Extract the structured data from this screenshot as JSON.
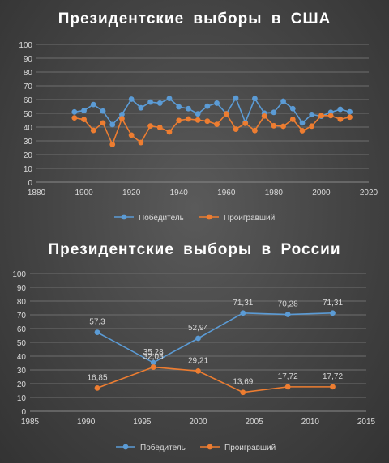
{
  "chart_data": [
    {
      "type": "line",
      "title": "Президентские выборы в США",
      "xlim": [
        1880,
        2020
      ],
      "ylim": [
        0,
        100
      ],
      "xticks": [
        "1880",
        "1900",
        "1920",
        "1940",
        "1960",
        "1980",
        "2000",
        "2020"
      ],
      "yticks": [
        "0",
        "10",
        "20",
        "30",
        "40",
        "50",
        "60",
        "70",
        "80",
        "90",
        "100"
      ],
      "grid": true,
      "legend": "bottom",
      "series": [
        {
          "name": "Победитель",
          "color": "#5b9bd5",
          "points": [
            [
              1896,
              51
            ],
            [
              1900,
              52
            ],
            [
              1904,
              56.4
            ],
            [
              1908,
              51.6
            ],
            [
              1912,
              41.8
            ],
            [
              1916,
              49.2
            ],
            [
              1920,
              60.3
            ],
            [
              1924,
              54
            ],
            [
              1928,
              58.2
            ],
            [
              1932,
              57.4
            ],
            [
              1936,
              60.8
            ],
            [
              1940,
              54.7
            ],
            [
              1944,
              53.4
            ],
            [
              1948,
              49.6
            ],
            [
              1952,
              55.2
            ],
            [
              1956,
              57.4
            ],
            [
              1960,
              49.7
            ],
            [
              1964,
              61.1
            ],
            [
              1968,
              43.4
            ],
            [
              1972,
              60.7
            ],
            [
              1976,
              50.1
            ],
            [
              1980,
              50.7
            ],
            [
              1984,
              58.8
            ],
            [
              1988,
              53.4
            ],
            [
              1992,
              43
            ],
            [
              1996,
              49.2
            ],
            [
              2000,
              47.9
            ],
            [
              2004,
              50.7
            ],
            [
              2008,
              52.9
            ],
            [
              2012,
              51.1
            ]
          ]
        },
        {
          "name": "Проигравший",
          "color": "#ed7d31",
          "points": [
            [
              1896,
              46.7
            ],
            [
              1900,
              45.5
            ],
            [
              1904,
              37.6
            ],
            [
              1908,
              43
            ],
            [
              1912,
              27.4
            ],
            [
              1916,
              46.1
            ],
            [
              1920,
              34.2
            ],
            [
              1924,
              28.8
            ],
            [
              1928,
              40.8
            ],
            [
              1932,
              39.7
            ],
            [
              1936,
              36.5
            ],
            [
              1940,
              44.8
            ],
            [
              1944,
              45.9
            ],
            [
              1948,
              45.1
            ],
            [
              1952,
              44.3
            ],
            [
              1956,
              42
            ],
            [
              1960,
              49.6
            ],
            [
              1964,
              38.5
            ],
            [
              1968,
              42.7
            ],
            [
              1972,
              37.5
            ],
            [
              1976,
              48
            ],
            [
              1980,
              41
            ],
            [
              1984,
              40.6
            ],
            [
              1988,
              45.6
            ],
            [
              1992,
              37.4
            ],
            [
              1996,
              40.7
            ],
            [
              2000,
              48.4
            ],
            [
              2004,
              48.3
            ],
            [
              2008,
              45.7
            ],
            [
              2012,
              47.2
            ]
          ]
        }
      ]
    },
    {
      "type": "line",
      "title": "Президентские выборы в России",
      "xlim": [
        1985,
        2015
      ],
      "ylim": [
        0,
        100
      ],
      "xticks": [
        "1985",
        "1990",
        "1995",
        "2000",
        "2005",
        "2010",
        "2015"
      ],
      "yticks": [
        "0",
        "10",
        "20",
        "30",
        "40",
        "50",
        "60",
        "70",
        "80",
        "90",
        "100"
      ],
      "grid": true,
      "legend": "bottom",
      "series": [
        {
          "name": "Победитель",
          "color": "#5b9bd5",
          "points": [
            [
              1991,
              57.3
            ],
            [
              1996,
              35.28
            ],
            [
              2000,
              52.94
            ],
            [
              2004,
              71.31
            ],
            [
              2008,
              70.28
            ],
            [
              2012,
              71.31
            ]
          ],
          "labels": [
            "57,3",
            "35,28",
            "52,94",
            "71,31",
            "70,28",
            "71,31"
          ]
        },
        {
          "name": "Проигравший",
          "color": "#ed7d31",
          "points": [
            [
              1991,
              16.85
            ],
            [
              1996,
              32.03
            ],
            [
              2000,
              29.21
            ],
            [
              2004,
              13.69
            ],
            [
              2008,
              17.72
            ],
            [
              2012,
              17.72
            ]
          ],
          "labels": [
            "16,85",
            "32,03",
            "29,21",
            "13,69",
            "17,72",
            "17,72"
          ]
        }
      ]
    }
  ]
}
